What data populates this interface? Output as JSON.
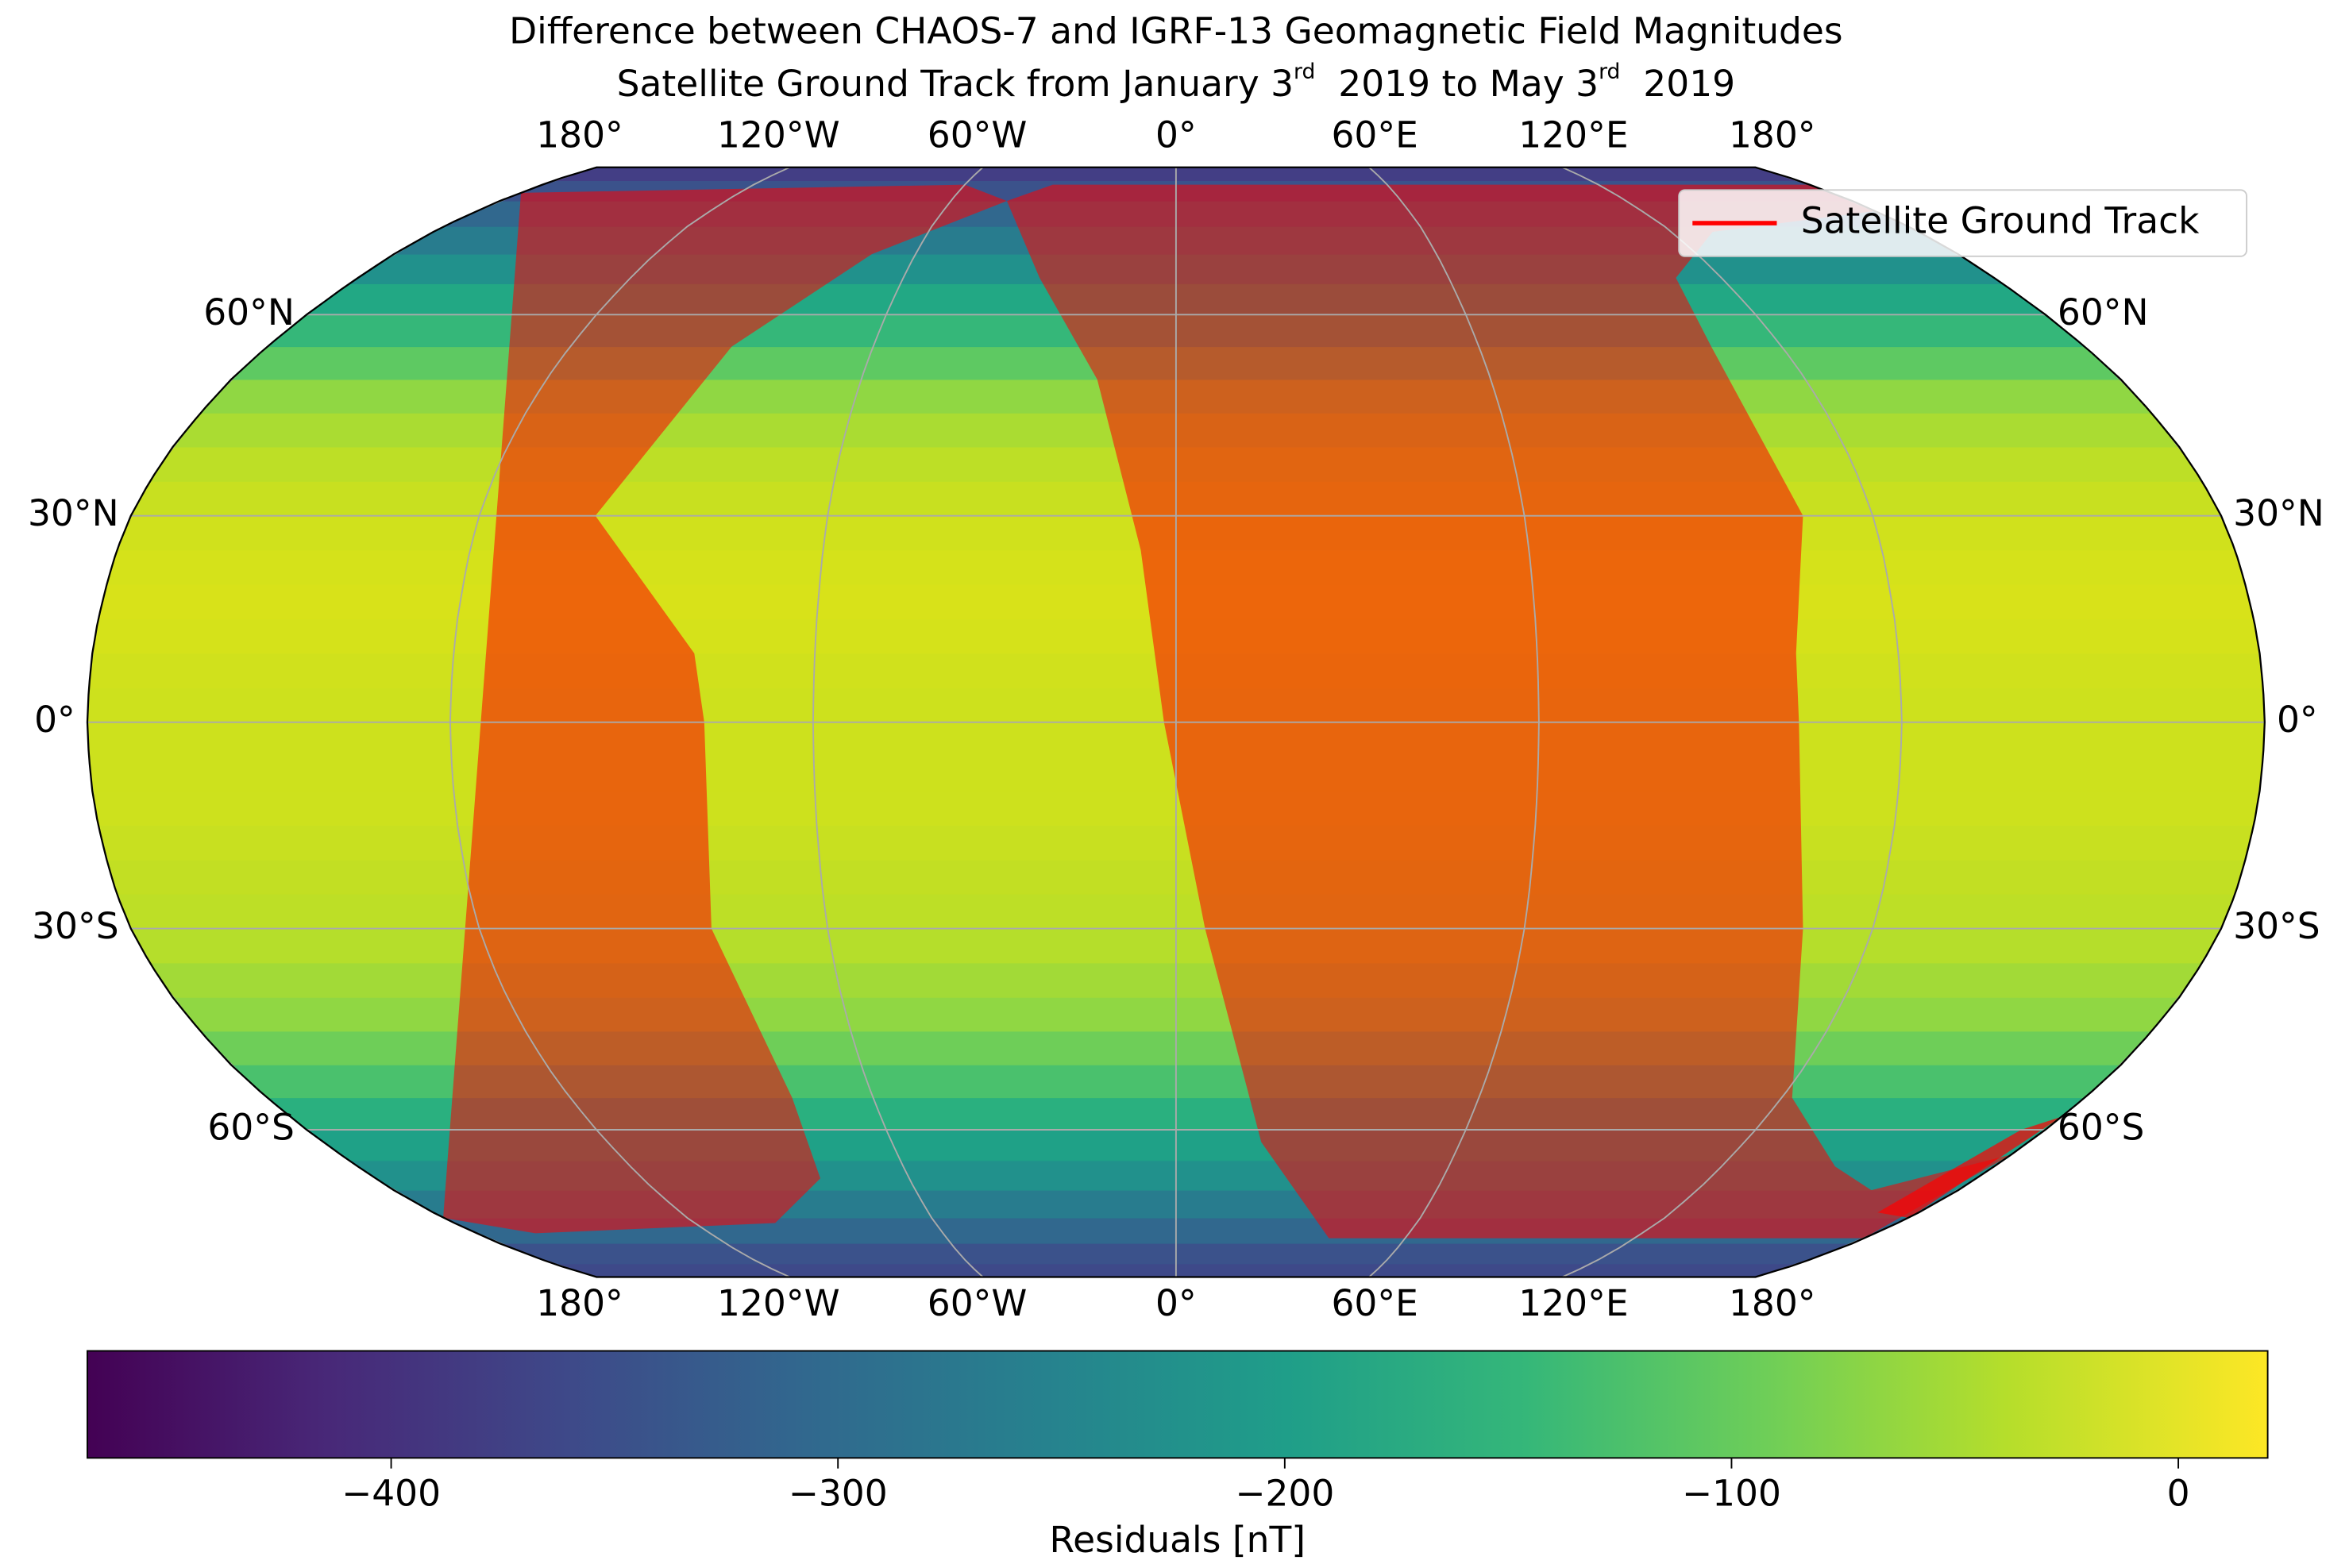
{
  "title": "Difference between CHAOS-7 and IGRF-13 Geomagnetic Field Magnitudes",
  "subtitle": [
    "Satellite Ground Track from January 3",
    "rd",
    "  2019 to May 3",
    "rd",
    "  2019"
  ],
  "lon_labels": [
    {
      "value": -180,
      "label": "180°"
    },
    {
      "value": -120,
      "label": "120°W"
    },
    {
      "value": -60,
      "label": "60°W"
    },
    {
      "value": 0,
      "label": "0°"
    },
    {
      "value": 60,
      "label": "60°E"
    },
    {
      "value": 120,
      "label": "120°E"
    },
    {
      "value": 180,
      "label": "180°"
    }
  ],
  "lat_labels": [
    {
      "value": 60,
      "label": "60°N"
    },
    {
      "value": 30,
      "label": "30°N"
    },
    {
      "value": 0,
      "label": "0°"
    },
    {
      "value": -30,
      "label": "30°S"
    },
    {
      "value": -60,
      "label": "60°S"
    }
  ],
  "legend": {
    "label": "Satellite Ground Track",
    "color": "#ff0000"
  },
  "colorbar": {
    "label": "Residuals [nT]",
    "lim": [
      -468,
      20
    ],
    "ticks": [
      {
        "value": -400,
        "label": "−400"
      },
      {
        "value": -300,
        "label": "−300"
      },
      {
        "value": -200,
        "label": "−200"
      },
      {
        "value": -100,
        "label": "−100"
      },
      {
        "value": 0,
        "label": "0"
      }
    ]
  }
}
